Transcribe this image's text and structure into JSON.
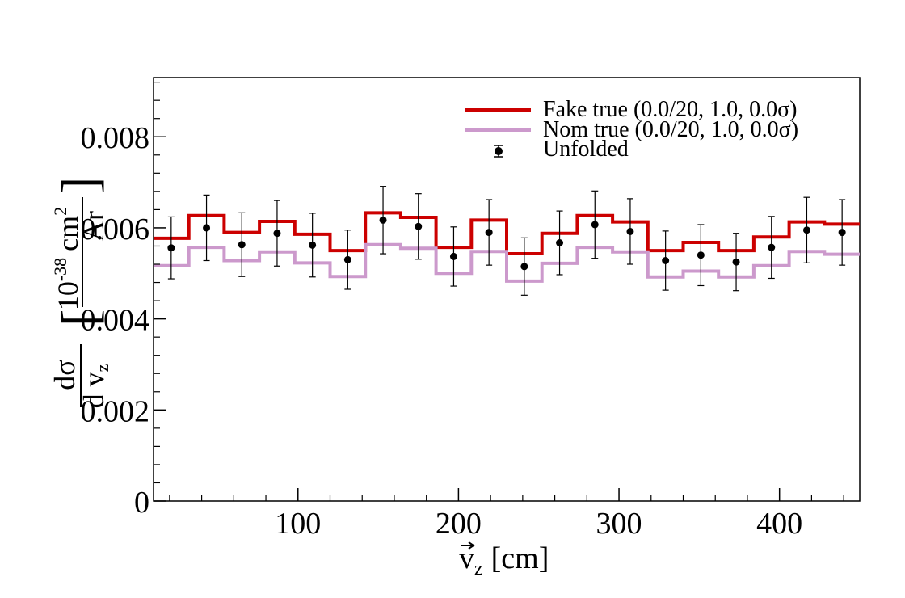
{
  "chart_data": {
    "type": "histogram-with-points",
    "xlabel": {
      "main": "v",
      "sub": "z",
      "unit": "[cm]"
    },
    "ylabel": {
      "frac_num": "dσ",
      "frac_den": "d v",
      "frac_den_sub": "z",
      "unit_prefix": "10",
      "unit_exp": "-38",
      "unit_main": "cm",
      "unit_main_exp": "2",
      "unit_den": "Ar"
    },
    "xlim": [
      10,
      450
    ],
    "ylim": [
      0,
      0.0093
    ],
    "x_ticks": [
      100,
      200,
      300,
      400
    ],
    "x_tick_labels": [
      "100",
      "200",
      "300",
      "400"
    ],
    "y_ticks": [
      0,
      0.002,
      0.004,
      0.006,
      0.008
    ],
    "y_tick_labels": [
      "0",
      "0.002",
      "0.004",
      "0.006",
      "0.008"
    ],
    "legend_position": "top-right",
    "bin_edges": [
      10,
      32,
      54,
      76,
      98,
      120,
      142,
      164,
      186,
      208,
      230,
      252,
      274,
      296,
      318,
      340,
      362,
      384,
      406,
      428,
      450
    ],
    "series": [
      {
        "name": "Fake true (0.0/20, 1.0, 0.0σ)",
        "kind": "step",
        "color": "#cc0000",
        "values": [
          0.00577,
          0.00627,
          0.0059,
          0.00614,
          0.00586,
          0.0055,
          0.00633,
          0.00623,
          0.00557,
          0.00617,
          0.00543,
          0.00588,
          0.00627,
          0.00613,
          0.0055,
          0.00568,
          0.0055,
          0.0058,
          0.00613,
          0.00608
        ]
      },
      {
        "name": "Nom true (0.0/20, 1.0, 0.0σ)",
        "kind": "step",
        "color": "#cc99cc",
        "values": [
          0.00517,
          0.00557,
          0.00528,
          0.00547,
          0.00523,
          0.00493,
          0.00563,
          0.00555,
          0.005,
          0.00548,
          0.00483,
          0.00522,
          0.00557,
          0.00547,
          0.00492,
          0.00505,
          0.00492,
          0.00517,
          0.00548,
          0.00542
        ]
      },
      {
        "name": "Unfolded",
        "kind": "points",
        "color": "#000000",
        "x": [
          21,
          43,
          65,
          87,
          109,
          131,
          153,
          175,
          197,
          219,
          241,
          263,
          285,
          307,
          329,
          351,
          373,
          395,
          417,
          439
        ],
        "values": [
          0.00556,
          0.006,
          0.00563,
          0.00588,
          0.00562,
          0.0053,
          0.00617,
          0.00603,
          0.00537,
          0.0059,
          0.00515,
          0.00567,
          0.00607,
          0.00592,
          0.00528,
          0.0054,
          0.00525,
          0.00557,
          0.00595,
          0.0059
        ],
        "errors": [
          0.00068,
          0.00072,
          0.0007,
          0.00072,
          0.0007,
          0.00065,
          0.00074,
          0.00072,
          0.00065,
          0.00072,
          0.00063,
          0.0007,
          0.00074,
          0.00072,
          0.00065,
          0.00067,
          0.00063,
          0.00068,
          0.00072,
          0.00072
        ]
      }
    ]
  }
}
